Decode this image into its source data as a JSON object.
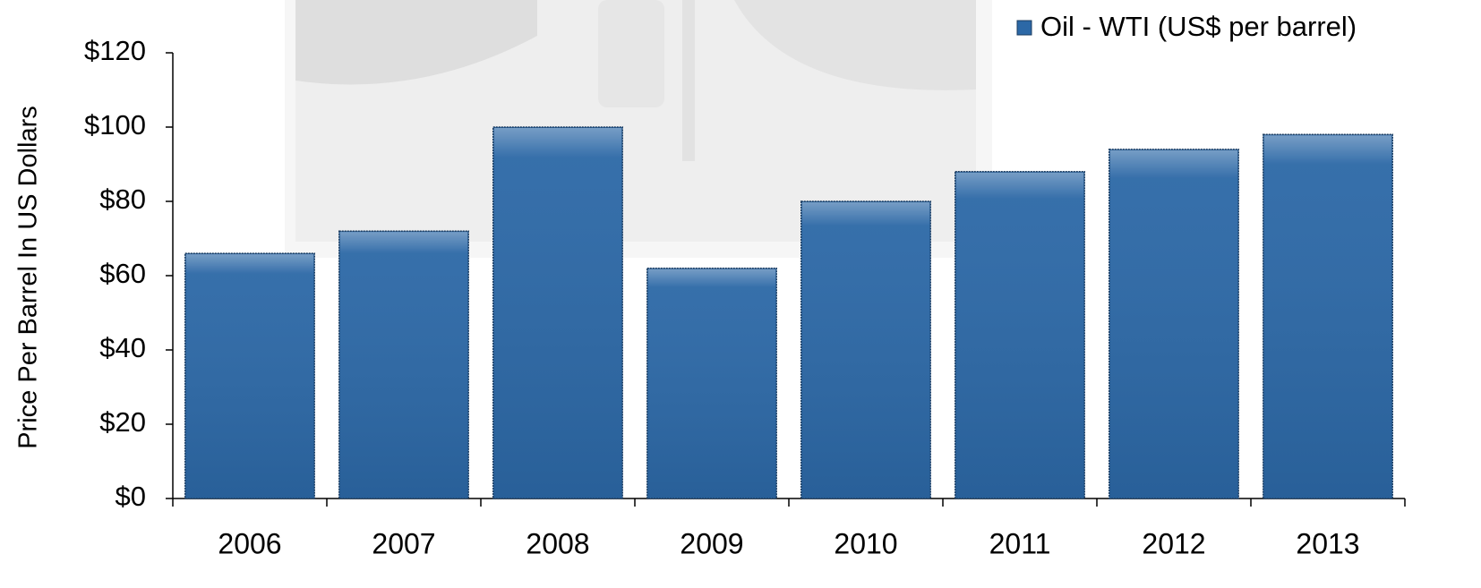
{
  "chart_data": {
    "type": "bar",
    "y_axis_label": "Price Per Barrel In US Dollars",
    "categories": [
      "2006",
      "2007",
      "2008",
      "2009",
      "2010",
      "2011",
      "2012",
      "2013"
    ],
    "series": [
      {
        "name": "Oil - WTI (US$ per barrel)",
        "color": "#2c68a6",
        "values": [
          66,
          72,
          100,
          62,
          80,
          88,
          94,
          98
        ]
      }
    ],
    "ylim": [
      0,
      120
    ],
    "yticks": [
      {
        "value": 0,
        "label": "$0"
      },
      {
        "value": 20,
        "label": "$20"
      },
      {
        "value": 40,
        "label": "$40"
      },
      {
        "value": 60,
        "label": "$60"
      },
      {
        "value": 80,
        "label": "$80"
      },
      {
        "value": 100,
        "label": "$100"
      },
      {
        "value": 120,
        "label": "$120"
      }
    ],
    "legend": "top-right"
  }
}
